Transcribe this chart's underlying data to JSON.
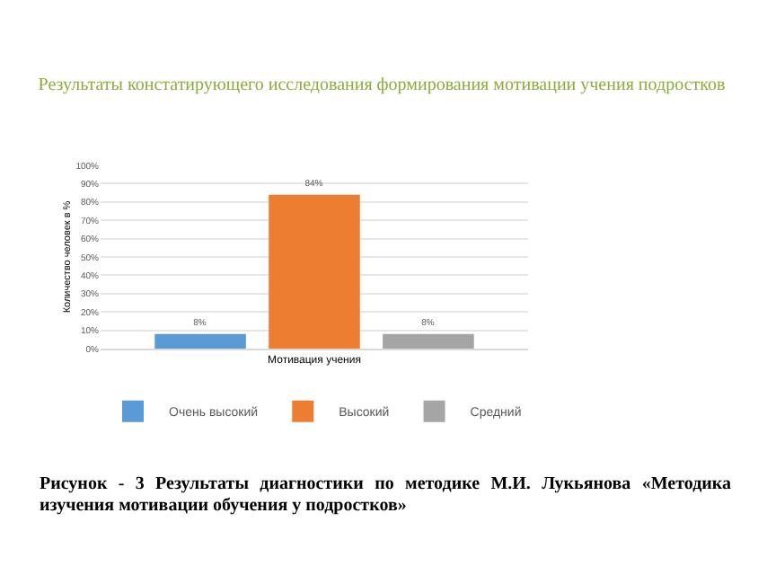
{
  "chart_data": {
    "type": "bar",
    "title": "Результаты констатирующего исследования формирования мотивации учения подростков",
    "ylabel": "Количество человек в %",
    "categories": [
      "Мотивация учения"
    ],
    "series": [
      {
        "name": "Очень высокий",
        "color": "#5b9bd5",
        "values": [
          8
        ],
        "value_labels": [
          "8%"
        ]
      },
      {
        "name": "Высокий",
        "color": "#ed7d31",
        "values": [
          84
        ],
        "value_labels": [
          "84%"
        ]
      },
      {
        "name": "Средний",
        "color": "#a5a5a5",
        "values": [
          8
        ],
        "value_labels": [
          "8%"
        ]
      }
    ],
    "ylim": [
      0,
      100
    ],
    "yticks": [
      {
        "value": 0,
        "label": "0%"
      },
      {
        "value": 10,
        "label": "10%"
      },
      {
        "value": 20,
        "label": "20%"
      },
      {
        "value": 30,
        "label": "30%"
      },
      {
        "value": 40,
        "label": "40%"
      },
      {
        "value": 50,
        "label": "50%"
      },
      {
        "value": 60,
        "label": "60%"
      },
      {
        "value": 70,
        "label": "70%"
      },
      {
        "value": 80,
        "label": "80%"
      },
      {
        "value": 90,
        "label": "90%"
      },
      {
        "value": 100,
        "label": "100%"
      }
    ],
    "grid": "y",
    "legend": "bottom",
    "annotations": [
      "Рисунок - 3 Результаты диагностики по методике М.И. Лукьянова «Методика изучения мотивации обучения у подростков»"
    ]
  }
}
